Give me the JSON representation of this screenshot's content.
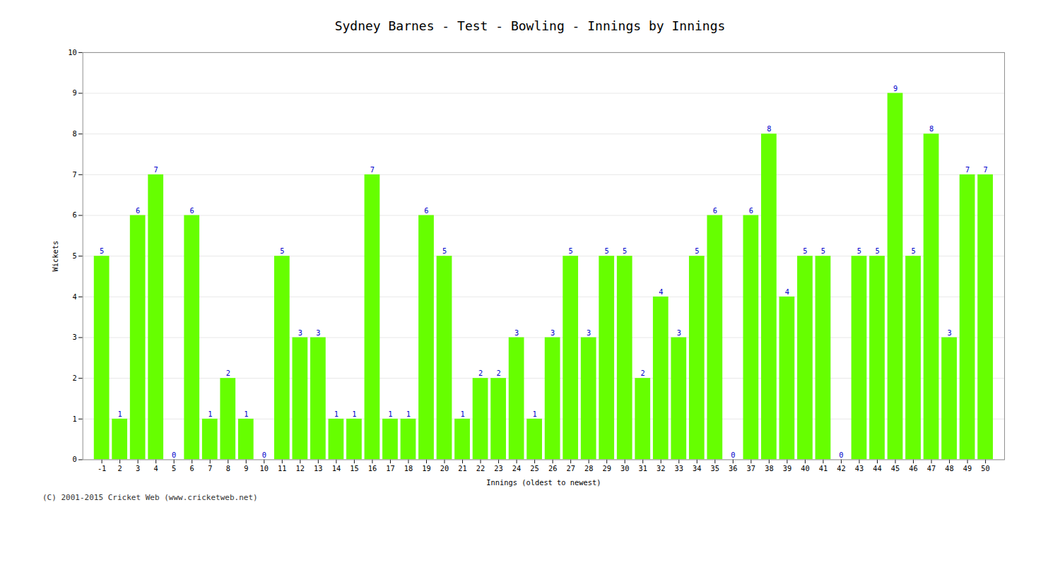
{
  "chart_data": {
    "type": "bar",
    "title": "Sydney Barnes - Test - Bowling - Innings by Innings",
    "xlabel": "Innings (oldest to newest)",
    "ylabel": "Wickets",
    "caption": "(C) 2001-2015 Cricket Web (www.cricketweb.net)",
    "categories": [
      "-1",
      "2",
      "3",
      "4",
      "5",
      "6",
      "7",
      "8",
      "9",
      "10",
      "11",
      "12",
      "13",
      "14",
      "15",
      "16",
      "17",
      "18",
      "19",
      "20",
      "21",
      "22",
      "23",
      "24",
      "25",
      "26",
      "27",
      "28",
      "29",
      "30",
      "31",
      "32",
      "33",
      "34",
      "35",
      "36",
      "37",
      "38",
      "39",
      "40",
      "41",
      "42",
      "43",
      "44",
      "45",
      "46",
      "47",
      "48",
      "49",
      "50"
    ],
    "values": [
      5,
      1,
      6,
      7,
      0,
      6,
      1,
      2,
      1,
      0,
      5,
      3,
      3,
      1,
      1,
      7,
      1,
      1,
      6,
      5,
      1,
      2,
      2,
      3,
      1,
      3,
      5,
      3,
      5,
      5,
      2,
      4,
      3,
      5,
      6,
      0,
      6,
      8,
      4,
      5,
      5,
      0,
      5,
      5,
      9,
      5,
      8,
      3,
      7,
      7
    ],
    "color": "#66ff00",
    "ylim": [
      0,
      10
    ],
    "yticks": [
      0,
      1,
      2,
      3,
      4,
      5,
      6,
      7,
      8,
      9,
      10
    ],
    "grid": true,
    "data_labels": true
  }
}
